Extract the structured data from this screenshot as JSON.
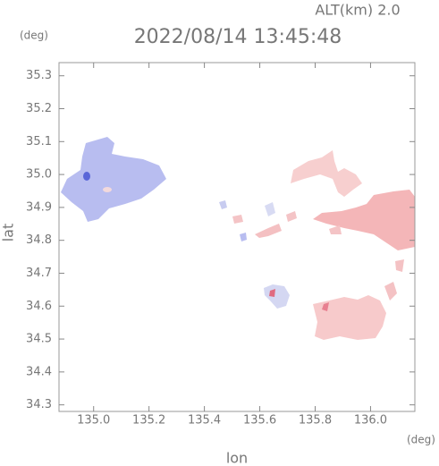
{
  "chart_data": {
    "type": "map",
    "title": "2022/08/14 13:45:48",
    "subtitle": "ALT(km) 2.0",
    "xlabel": "lon",
    "ylabel": "lat",
    "xunit": "(deg)",
    "yunit": "(deg)",
    "xlim": [
      134.875,
      136.16
    ],
    "ylim": [
      34.28,
      35.34
    ],
    "xticks": [
      {
        "value": 135,
        "label": "135.0"
      },
      135.2,
      135.4,
      135.6,
      135.8,
      {
        "value": 136,
        "label": "136.0"
      }
    ],
    "yticks": [
      34.3,
      34.4,
      34.5,
      34.6,
      34.7,
      34.8,
      34.9,
      {
        "value": 35,
        "label": "35.0"
      },
      35.1,
      35.2,
      35.3
    ]
  }
}
